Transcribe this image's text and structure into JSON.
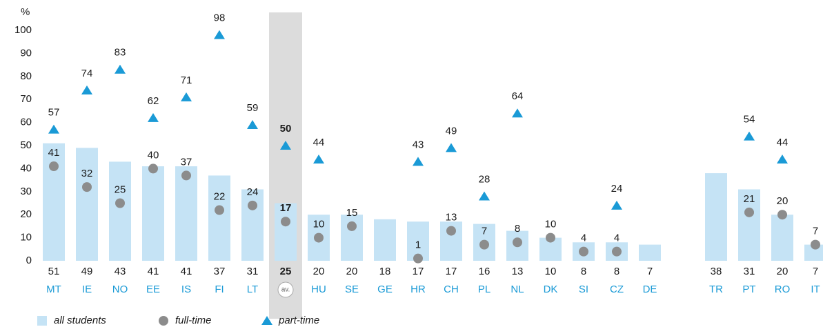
{
  "chart_data": {
    "type": "bar",
    "y_label": "%",
    "categories": [
      "MT",
      "IE",
      "NO",
      "EE",
      "IS",
      "FI",
      "LT",
      "av.",
      "HU",
      "SE",
      "GE",
      "HR",
      "CH",
      "PL",
      "NL",
      "DK",
      "SI",
      "CZ",
      "DE",
      null,
      "TR",
      "PT",
      "RO",
      "IT"
    ],
    "highlight_category": "av.",
    "series": [
      {
        "name": "all students",
        "color": "#c5e3f5",
        "marker": "bar",
        "values": [
          51,
          49,
          43,
          41,
          41,
          37,
          31,
          25,
          20,
          20,
          18,
          17,
          17,
          16,
          13,
          10,
          8,
          8,
          7,
          null,
          38,
          31,
          20,
          7
        ]
      },
      {
        "name": "full-time",
        "color": "#8c8c8c",
        "marker": "circle",
        "values": [
          41,
          32,
          25,
          40,
          37,
          22,
          24,
          17,
          10,
          15,
          null,
          1,
          13,
          7,
          8,
          10,
          4,
          4,
          null,
          null,
          null,
          21,
          20,
          7
        ]
      },
      {
        "name": "part-time",
        "color": "#1a9ad6",
        "marker": "triangle",
        "values": [
          57,
          74,
          83,
          62,
          71,
          98,
          59,
          50,
          44,
          null,
          null,
          43,
          49,
          28,
          64,
          null,
          null,
          24,
          null,
          null,
          null,
          54,
          44,
          null
        ]
      }
    ],
    "ylim": [
      0,
      100
    ],
    "yticks": [
      0,
      10,
      20,
      30,
      40,
      50,
      60,
      70,
      80,
      90,
      100
    ],
    "grid": false
  }
}
